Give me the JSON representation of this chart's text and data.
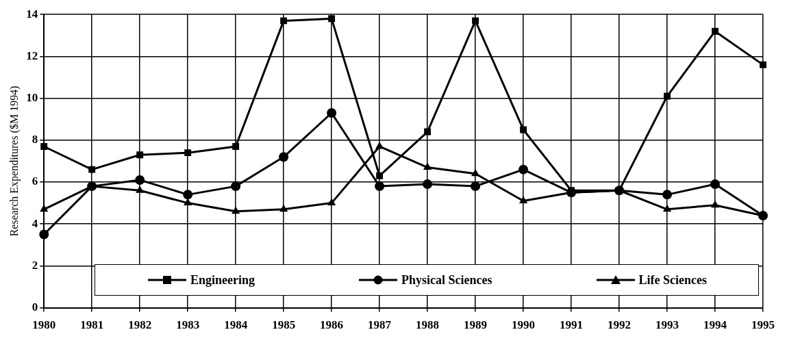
{
  "chart_data": {
    "type": "line",
    "ylabel": "Research Expenditures ($M 1994)",
    "categories": [
      "1980",
      "1981",
      "1982",
      "1983",
      "1984",
      "1985",
      "1986",
      "1987",
      "1988",
      "1989",
      "1990",
      "1991",
      "1992",
      "1993",
      "1994",
      "1995"
    ],
    "series": [
      {
        "name": "Engineering",
        "color": "#000000",
        "marker": "square",
        "values": [
          7.7,
          6.6,
          7.3,
          7.4,
          7.7,
          13.7,
          13.8,
          6.3,
          8.4,
          13.7,
          8.5,
          5.6,
          5.6,
          10.1,
          13.2,
          11.6
        ]
      },
      {
        "name": "Physical Sciences",
        "color": "#000000",
        "marker": "circle",
        "values": [
          3.5,
          5.8,
          6.1,
          5.4,
          5.8,
          7.2,
          9.3,
          5.8,
          5.9,
          5.8,
          6.6,
          5.5,
          5.6,
          5.4,
          5.9,
          4.4
        ]
      },
      {
        "name": "Life Sciences",
        "color": "#000000",
        "marker": "triangle",
        "values": [
          4.7,
          5.8,
          5.6,
          5.0,
          4.6,
          4.7,
          5.0,
          7.7,
          6.7,
          6.4,
          5.1,
          5.5,
          5.6,
          4.7,
          4.9,
          4.4
        ]
      }
    ],
    "ylim": [
      0,
      14
    ],
    "yticks": [
      0,
      2,
      4,
      6,
      8,
      10,
      12,
      14
    ],
    "grid": true,
    "legend": "bottom",
    "line_style": "solid"
  }
}
